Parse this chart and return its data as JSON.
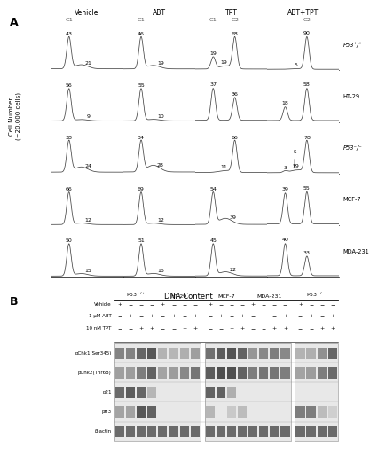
{
  "col_labels": [
    "Vehicle",
    "ABT",
    "TPT",
    "ABT+TPT"
  ],
  "row_labels": [
    "P53⁺/⁺",
    "HT-29",
    "P53⁻/⁻",
    "MCF-7",
    "MDA-231"
  ],
  "ylabel": "Cell Number\n(~20,000 cells)",
  "xlabel": "DNA Content",
  "flow_data": [
    [
      {
        "g1": 43,
        "s": 21,
        "g2": 0
      },
      {
        "g1": 46,
        "s": 19,
        "g2": 0
      },
      {
        "g1": 19,
        "s": 19,
        "g2": 68
      },
      {
        "g1": 0,
        "s": 5,
        "g2": 90
      }
    ],
    [
      {
        "g1": 56,
        "s": 9,
        "g2": 0
      },
      {
        "g1": 55,
        "s": 10,
        "g2": 0
      },
      {
        "g1": 37,
        "s": 0,
        "g2": 36
      },
      {
        "g1": 18,
        "s": 0,
        "g2": 58
      }
    ],
    [
      {
        "g1": 38,
        "s": 24,
        "g2": 0
      },
      {
        "g1": 34,
        "s": 28,
        "g2": 0
      },
      {
        "g1": 0,
        "s": 11,
        "g2": 66
      },
      {
        "g1": 3,
        "s": 19,
        "g2": 78,
        "arrow": true
      }
    ],
    [
      {
        "g1": 66,
        "s": 12,
        "g2": 0
      },
      {
        "g1": 69,
        "s": 12,
        "g2": 0
      },
      {
        "g1": 54,
        "s": 39,
        "g2": 0
      },
      {
        "g1": 39,
        "s": 0,
        "g2": 55
      }
    ],
    [
      {
        "g1": 50,
        "s": 15,
        "g2": 0
      },
      {
        "g1": 51,
        "s": 16,
        "g2": 0
      },
      {
        "g1": 45,
        "s": 22,
        "g2": 0
      },
      {
        "g1": 40,
        "s": 0,
        "g2": 33
      }
    ]
  ],
  "blot_groups": [
    "P53+/+",
    "HT-29",
    "MCF-7",
    "MDA-231",
    "P53-/-"
  ],
  "blot_rows": [
    "pChk1(Ser345)",
    "pChk2(Thr68)",
    "p21",
    "pH3",
    "β-actin"
  ],
  "treat_labels": [
    "Vehicle",
    "1 μM ABT",
    "10 nM TPT"
  ],
  "treat_signs": [
    [
      "+",
      "-",
      "-",
      "-",
      "+",
      "-",
      "-",
      "-",
      "+",
      "-",
      "-",
      "-",
      "+",
      "-",
      "-",
      "-",
      "+",
      "-",
      "-",
      "-"
    ],
    [
      "-",
      "+",
      "-",
      "+",
      "-",
      "+",
      "-",
      "+",
      "-",
      "+",
      "-",
      "+",
      "-",
      "+",
      "-",
      "+",
      "-",
      "+",
      "-",
      "+"
    ],
    [
      "-",
      "-",
      "+",
      "+",
      "-",
      "-",
      "+",
      "+",
      "-",
      "-",
      "+",
      "+",
      "-",
      "-",
      "+",
      "+",
      "-",
      "-",
      "+",
      "+"
    ]
  ]
}
